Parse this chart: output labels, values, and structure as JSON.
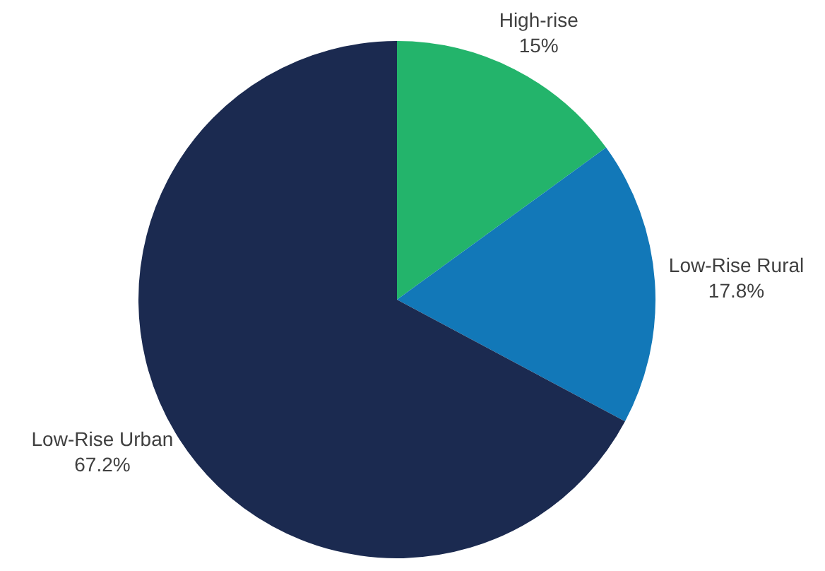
{
  "chart_data": {
    "type": "pie",
    "categories": [
      "High-rise",
      "Low-Rise Rural",
      "Low-Rise Urban"
    ],
    "values": [
      15,
      17.8,
      67.2
    ],
    "colors": [
      "#23b46b",
      "#1278b8",
      "#1b2a50"
    ],
    "value_labels": [
      "15%",
      "17.8%",
      "67.2%"
    ]
  }
}
